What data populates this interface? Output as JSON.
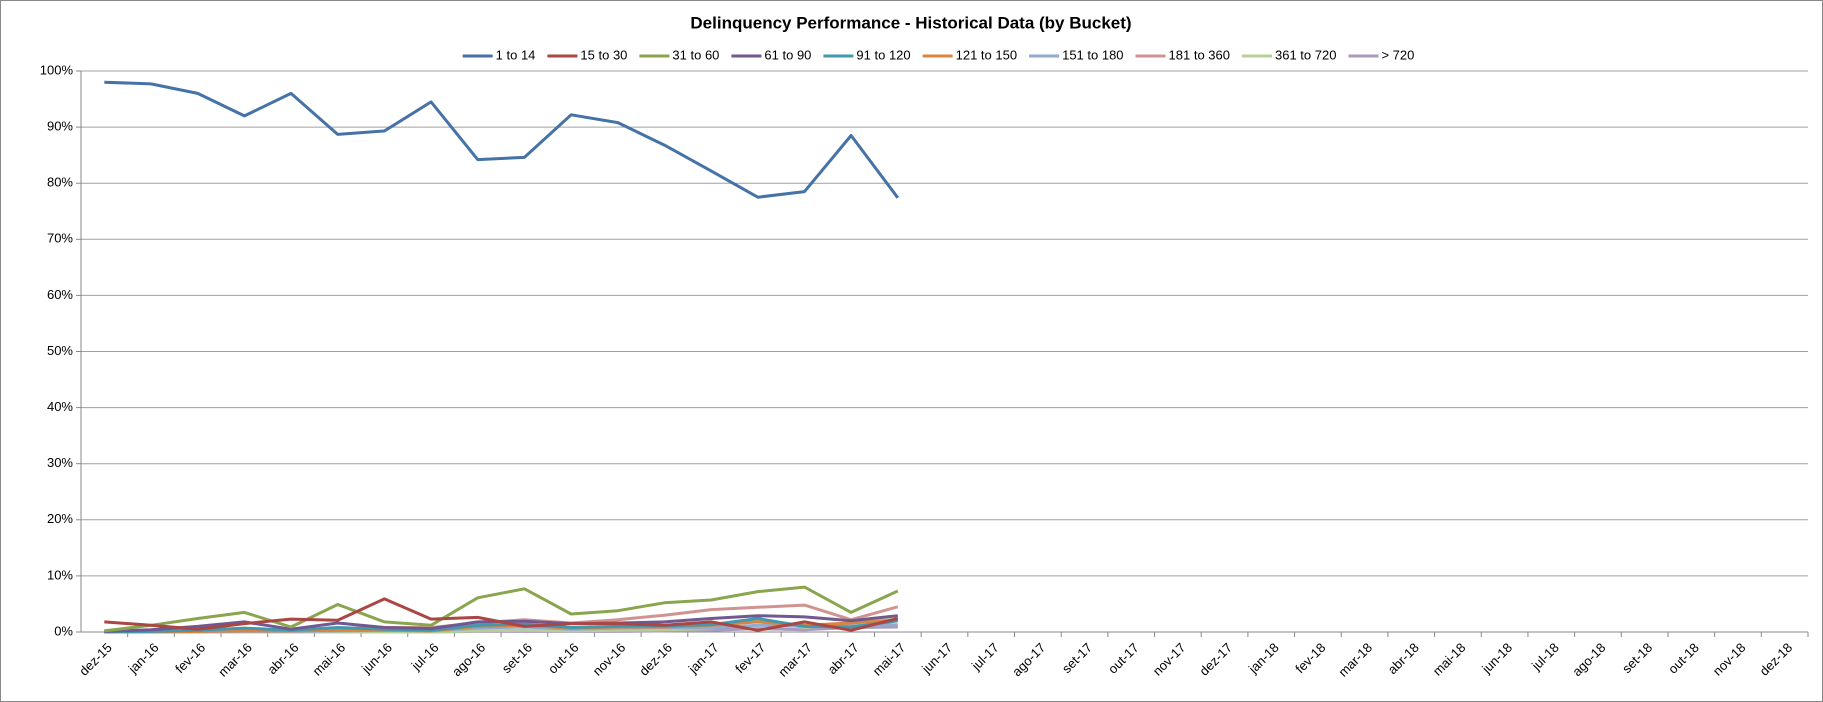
{
  "chart_data": {
    "type": "line",
    "title": "Delinquency Performance - Historical Data (by Bucket)",
    "categories": [
      "dez-15",
      "jan-16",
      "fev-16",
      "mar-16",
      "abr-16",
      "mai-16",
      "jun-16",
      "jul-16",
      "ago-16",
      "set-16",
      "out-16",
      "nov-16",
      "dez-16",
      "jan-17",
      "fev-17",
      "mar-17",
      "abr-17",
      "mai-17",
      "jun-17",
      "jul-17",
      "ago-17",
      "set-17",
      "out-17",
      "nov-17",
      "dez-17",
      "jan-18",
      "fev-18",
      "mar-18",
      "abr-18",
      "mai-18",
      "jun-18",
      "jul-18",
      "ago-18",
      "set-18",
      "out-18",
      "nov-18",
      "dez-18"
    ],
    "series": [
      {
        "name": "1 to 14",
        "color": "#4572A7",
        "values": [
          98,
          97.7,
          96,
          92,
          96,
          88.7,
          89.3,
          94.5,
          84.2,
          84.6,
          92.2,
          90.8,
          86.8,
          82.2,
          77.5,
          78.5,
          88.5,
          77.4,
          null,
          null,
          null,
          null,
          null,
          null,
          null,
          null,
          null,
          null,
          null,
          null,
          null,
          null,
          null,
          null,
          null,
          null,
          null
        ]
      },
      {
        "name": "15 to 30",
        "color": "#AA4643",
        "values": [
          1.8,
          1.2,
          0.5,
          1.5,
          2.3,
          2.1,
          5.9,
          2.3,
          2.6,
          1.0,
          1.5,
          1.5,
          1.2,
          1.8,
          0.3,
          1.8,
          0.3,
          2.4,
          null,
          null,
          null,
          null,
          null,
          null,
          null,
          null,
          null,
          null,
          null,
          null,
          null,
          null,
          null,
          null,
          null,
          null,
          null
        ]
      },
      {
        "name": "31 to 60",
        "color": "#89A54E",
        "values": [
          0.2,
          1.2,
          2.4,
          3.5,
          0.9,
          4.9,
          1.8,
          1.2,
          6.1,
          7.7,
          3.2,
          3.8,
          5.2,
          5.7,
          7.2,
          8.0,
          3.5,
          7.3,
          null,
          null,
          null,
          null,
          null,
          null,
          null,
          null,
          null,
          null,
          null,
          null,
          null,
          null,
          null,
          null,
          null,
          null,
          null
        ]
      },
      {
        "name": "61 to 90",
        "color": "#71588F",
        "values": [
          0.1,
          0.4,
          1.0,
          1.8,
          0.5,
          1.6,
          0.8,
          0.6,
          1.8,
          1.9,
          1.5,
          1.6,
          1.8,
          2.4,
          2.9,
          2.7,
          2.0,
          2.9,
          null,
          null,
          null,
          null,
          null,
          null,
          null,
          null,
          null,
          null,
          null,
          null,
          null,
          null,
          null,
          null,
          null,
          null,
          null
        ]
      },
      {
        "name": "91 to 120",
        "color": "#4198AF",
        "values": [
          0,
          0.1,
          0.3,
          0.7,
          0.3,
          0.8,
          0.5,
          0.3,
          1.2,
          1.4,
          0.8,
          1.0,
          1.1,
          1.3,
          2.4,
          1.0,
          0.9,
          2.0,
          null,
          null,
          null,
          null,
          null,
          null,
          null,
          null,
          null,
          null,
          null,
          null,
          null,
          null,
          null,
          null,
          null,
          null,
          null
        ]
      },
      {
        "name": "121 to 150",
        "color": "#DB843D",
        "values": [
          0,
          0,
          0.1,
          0.2,
          0.2,
          0.3,
          0.3,
          0.2,
          1.0,
          1.2,
          0.7,
          0.9,
          0.9,
          1.2,
          1.8,
          1.2,
          1.6,
          2.1,
          null,
          null,
          null,
          null,
          null,
          null,
          null,
          null,
          null,
          null,
          null,
          null,
          null,
          null,
          null,
          null,
          null,
          null,
          null
        ]
      },
      {
        "name": "151 to 180",
        "color": "#93A9CF",
        "values": [
          0,
          0,
          0,
          0.1,
          0.1,
          0.2,
          0.3,
          0.2,
          0.7,
          0.9,
          0.5,
          0.7,
          0.8,
          0.7,
          1.2,
          1.0,
          1.1,
          1.3,
          null,
          null,
          null,
          null,
          null,
          null,
          null,
          null,
          null,
          null,
          null,
          null,
          null,
          null,
          null,
          null,
          null,
          null,
          null
        ]
      },
      {
        "name": "181 to 360",
        "color": "#D19392",
        "values": [
          0,
          0,
          0,
          0.3,
          0.4,
          0.6,
          0.8,
          0.8,
          1.6,
          2.2,
          1.6,
          2.2,
          3.0,
          4.0,
          4.4,
          4.8,
          2.2,
          4.5,
          null,
          null,
          null,
          null,
          null,
          null,
          null,
          null,
          null,
          null,
          null,
          null,
          null,
          null,
          null,
          null,
          null,
          null,
          null
        ]
      },
      {
        "name": "361 to 720",
        "color": "#B9CD96",
        "values": [
          0,
          0,
          0,
          0,
          0,
          0,
          0,
          0,
          0.2,
          0.3,
          0.2,
          0.3,
          0.4,
          0.6,
          2.2,
          0.8,
          1.7,
          2.3,
          null,
          null,
          null,
          null,
          null,
          null,
          null,
          null,
          null,
          null,
          null,
          null,
          null,
          null,
          null,
          null,
          null,
          null,
          null
        ]
      },
      {
        "name": "> 720",
        "color": "#A99BBD",
        "values": [
          0,
          0,
          0,
          0,
          0,
          0,
          0,
          0,
          0.1,
          0.1,
          0.1,
          0.1,
          0.2,
          0.3,
          0.6,
          0.4,
          0.8,
          0.9,
          null,
          null,
          null,
          null,
          null,
          null,
          null,
          null,
          null,
          null,
          null,
          null,
          null,
          null,
          null,
          null,
          null,
          null,
          null
        ]
      }
    ],
    "ylim": [
      0,
      100
    ],
    "yticks": [
      {
        "value": 0,
        "label": "0%"
      },
      {
        "value": 10,
        "label": "10%"
      },
      {
        "value": 20,
        "label": "20%"
      },
      {
        "value": 30,
        "label": "30%"
      },
      {
        "value": 40,
        "label": "40%"
      },
      {
        "value": 50,
        "label": "50%"
      },
      {
        "value": 60,
        "label": "60%"
      },
      {
        "value": 70,
        "label": "70%"
      },
      {
        "value": 80,
        "label": "80%"
      },
      {
        "value": 90,
        "label": "90%"
      },
      {
        "value": 100,
        "label": "100%"
      }
    ],
    "grid": true,
    "legend": "top"
  }
}
